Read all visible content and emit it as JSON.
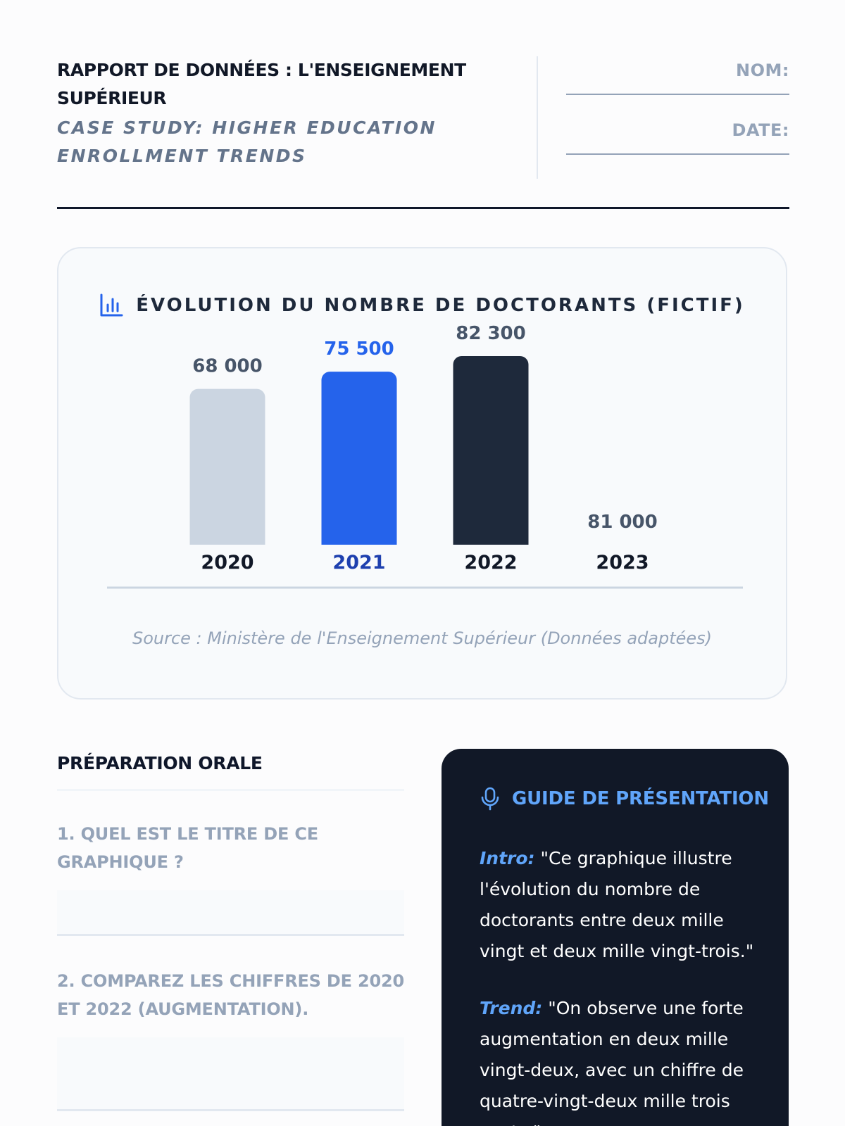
{
  "header": {
    "title": "RAPPORT DE DONNÉES : L'ENSEIGNEMENT SUPÉRIEUR",
    "subtitle": "CASE STUDY: HIGHER EDUCATION ENROLLMENT TRENDS",
    "name_label": "NOM:",
    "date_label": "DATE:"
  },
  "chart": {
    "title": "ÉVOLUTION DU NOMBRE DE DOCTORANTS (FICTIF)",
    "icon": "bar-chart-icon",
    "source": "Source : Ministère de l'Enseignement Supérieur (Données adaptées)"
  },
  "chart_data": {
    "type": "bar",
    "title": "ÉVOLUTION DU NOMBRE DE DOCTORANTS (FICTIF)",
    "categories": [
      "2020",
      "2021",
      "2022",
      "2023"
    ],
    "values": [
      68000,
      75500,
      82300,
      81000
    ],
    "value_labels": [
      "68 000",
      "75 500",
      "82 300",
      "81 000"
    ],
    "bar_colors": [
      "#cbd5e1",
      "#2563eb",
      "#1e293b",
      "transparent"
    ],
    "label_colors": [
      "#475569",
      "#2563eb",
      "#475569",
      "#475569"
    ],
    "category_colors": [
      "#111827",
      "#1e40af",
      "#111827",
      "#111827"
    ],
    "grid": false
  },
  "prep": {
    "title": "PRÉPARATION ORALE",
    "q1": "1. QUEL EST LE TITRE DE CE GRAPHIQUE ?",
    "q2": "2. COMPAREZ LES CHIFFRES DE 2020 ET 2022 (AUGMENTATION)."
  },
  "guide": {
    "icon": "microphone-icon",
    "title": "GUIDE DE PRÉSENTATION",
    "intro_label": "Intro:",
    "intro_text": " \"Ce graphique illustre l'évolution du nombre de doctorants entre deux mille vingt et deux mille vingt-trois.\"",
    "trend_label": "Trend:",
    "trend_text": " \"On observe une forte augmentation en deux mille vingt-deux, avec un chiffre de quatre-vingt-deux mille trois cents.\""
  },
  "colors": {
    "accent": "#2563eb",
    "dark": "#111827",
    "muted": "#94a3b8"
  }
}
